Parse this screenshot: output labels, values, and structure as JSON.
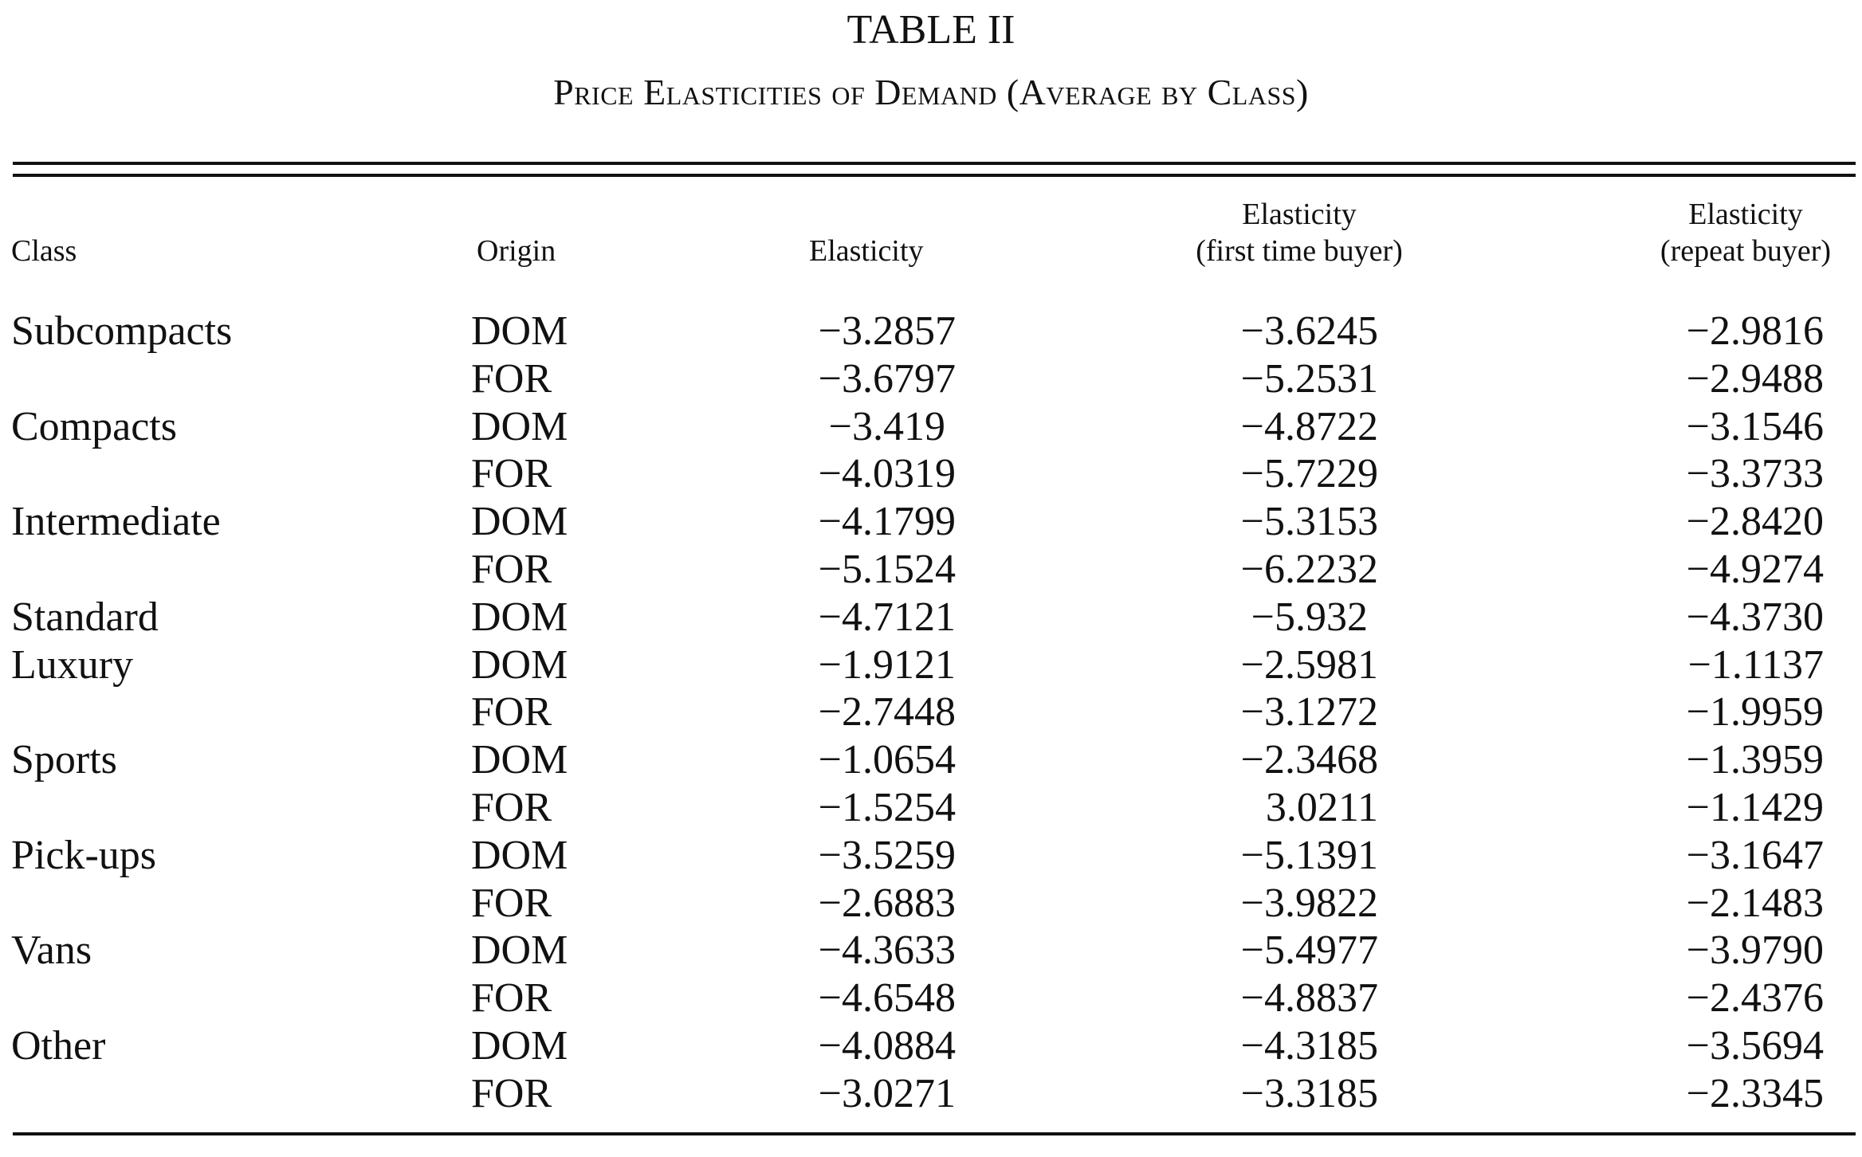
{
  "title": "TABLE II",
  "subtitle": "Price Elasticities of Demand (Average by Class)",
  "columns": {
    "class": "Class",
    "origin": "Origin",
    "elasticity": "Elasticity",
    "first_time": {
      "line1": "Elasticity",
      "line2": "(first time buyer)"
    },
    "repeat": {
      "line1": "Elasticity",
      "line2": "(repeat buyer)"
    }
  },
  "rows": [
    {
      "class": "Subcompacts",
      "origin": "DOM",
      "elasticity": "−3.2857",
      "first_time": "−3.6245",
      "repeat": "−2.9816"
    },
    {
      "class": "",
      "origin": "FOR",
      "elasticity": "−3.6797",
      "first_time": "−5.2531",
      "repeat": "−2.9488"
    },
    {
      "class": "Compacts",
      "origin": "DOM",
      "elasticity": "−3.419 ",
      "first_time": "−4.8722",
      "repeat": "−3.1546"
    },
    {
      "class": "",
      "origin": "FOR",
      "elasticity": "−4.0319",
      "first_time": "−5.7229",
      "repeat": "−3.3733"
    },
    {
      "class": "Intermediate",
      "origin": "DOM",
      "elasticity": "−4.1799",
      "first_time": "−5.3153",
      "repeat": "−2.8420"
    },
    {
      "class": "",
      "origin": "FOR",
      "elasticity": "−5.1524",
      "first_time": "−6.2232",
      "repeat": "−4.9274"
    },
    {
      "class": "Standard",
      "origin": "DOM",
      "elasticity": "−4.7121",
      "first_time": "−5.932 ",
      "repeat": "−4.3730"
    },
    {
      "class": "Luxury",
      "origin": "DOM",
      "elasticity": "−1.9121",
      "first_time": "−2.5981",
      "repeat": "−1.1137"
    },
    {
      "class": "",
      "origin": "FOR",
      "elasticity": "−2.7448",
      "first_time": "−3.1272",
      "repeat": "−1.9959"
    },
    {
      "class": "Sports",
      "origin": "DOM",
      "elasticity": "−1.0654",
      "first_time": "−2.3468",
      "repeat": "−1.3959"
    },
    {
      "class": "",
      "origin": "FOR",
      "elasticity": "−1.5254",
      "first_time": "3.0211",
      "repeat": "−1.1429"
    },
    {
      "class": "Pick-ups",
      "origin": "DOM",
      "elasticity": "−3.5259",
      "first_time": "−5.1391",
      "repeat": "−3.1647"
    },
    {
      "class": "",
      "origin": "FOR",
      "elasticity": "−2.6883",
      "first_time": "−3.9822",
      "repeat": "−2.1483"
    },
    {
      "class": "Vans",
      "origin": "DOM",
      "elasticity": "−4.3633",
      "first_time": "−5.4977",
      "repeat": "−3.9790"
    },
    {
      "class": "",
      "origin": "FOR",
      "elasticity": "−4.6548",
      "first_time": "−4.8837",
      "repeat": "−2.4376"
    },
    {
      "class": "Other",
      "origin": "DOM",
      "elasticity": "−4.0884",
      "first_time": "−4.3185",
      "repeat": "−3.5694"
    },
    {
      "class": "",
      "origin": "FOR",
      "elasticity": "−3.0271",
      "first_time": "−3.3185",
      "repeat": "−2.3345"
    }
  ]
}
